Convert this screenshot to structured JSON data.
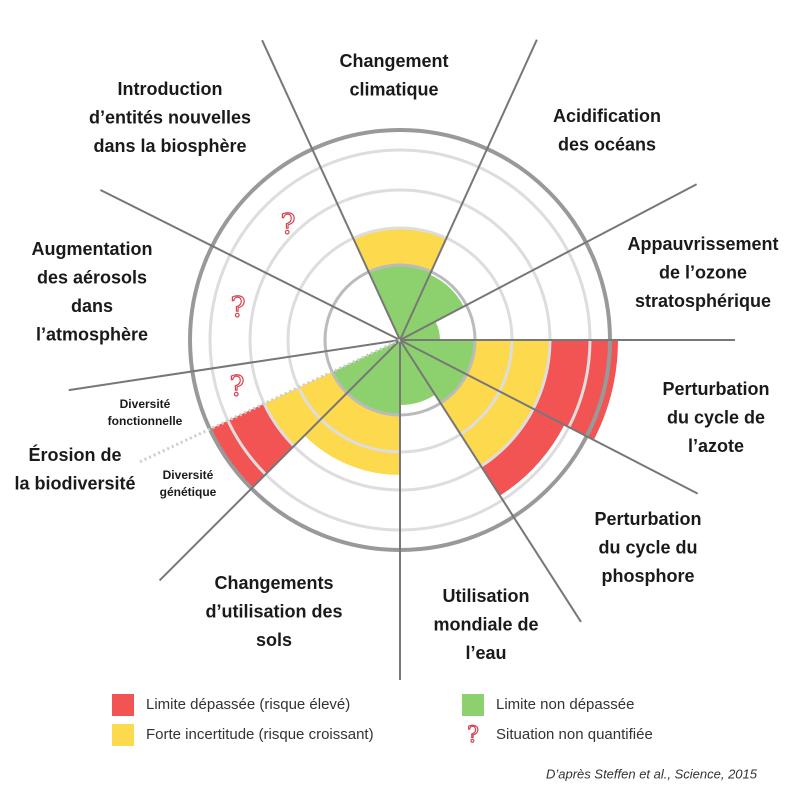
{
  "diagram": {
    "sectors": [
      {
        "label": [
          "Changement",
          "climatique"
        ]
      },
      {
        "label": [
          "Acidification",
          "des océans"
        ]
      },
      {
        "label": [
          "Appauvrissement",
          "de l’ozone",
          "stratosphérique"
        ]
      },
      {
        "label": [
          "Perturbation",
          "du cycle de",
          "l’azote"
        ]
      },
      {
        "label": [
          "Perturbation",
          "du cycle du",
          "phosphore"
        ]
      },
      {
        "label": [
          "Utilisation",
          "mondiale de",
          "l’eau"
        ]
      },
      {
        "label": [
          "Changements",
          "d’utilisation des",
          "sols"
        ]
      },
      {
        "label": [
          "Érosion de",
          "la biodiversité"
        ],
        "sublabels": [
          [
            "Diversité",
            "génétique"
          ],
          [
            "Diversité",
            "fonctionnelle"
          ]
        ]
      },
      {
        "label": [
          "Augmentation",
          "des aérosols",
          "dans",
          "l’atmosphère"
        ]
      },
      {
        "label": [
          "Introduction",
          "d’entités nouvelles",
          "dans la biosphère"
        ]
      }
    ],
    "unquantified_symbol": "?",
    "legend": [
      {
        "label": "Limite dépassée (risque élevé)",
        "color": "#f25454"
      },
      {
        "label": "Forte incertitude (risque croissant)",
        "color": "#fdd94e"
      },
      {
        "label": "Limite non dépassée",
        "color": "#8dd16f"
      },
      {
        "label": "Situation non quantifiée"
      }
    ],
    "source": "D’après Steffen et al., Science, 2015"
  }
}
